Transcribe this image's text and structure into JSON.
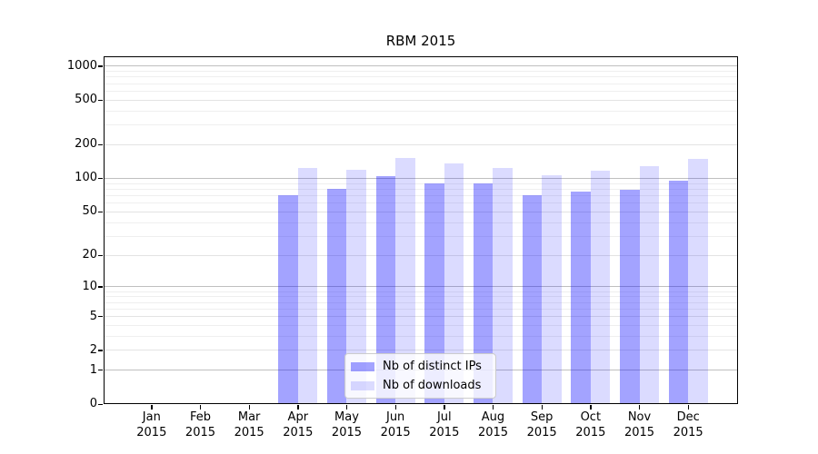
{
  "title": "RBM 2015",
  "chart_data": {
    "type": "bar",
    "title": "RBM 2015",
    "categories": [
      "Jan",
      "Feb",
      "Mar",
      "Apr",
      "May",
      "Jun",
      "Jul",
      "Aug",
      "Sep",
      "Oct",
      "Nov",
      "Dec"
    ],
    "x_year_label": "2015",
    "series": [
      {
        "name": "Nb of distinct IPs",
        "color": "rgba(0,0,255,0.36)",
        "values": [
          0,
          0,
          0,
          70,
          81,
          105,
          90,
          90,
          71,
          76,
          79,
          95
        ]
      },
      {
        "name": "Nb of downloads",
        "color": "rgba(0,0,255,0.14)",
        "values": [
          0,
          0,
          0,
          125,
          120,
          152,
          136,
          124,
          107,
          117,
          129,
          149
        ]
      }
    ],
    "xlabel": "",
    "ylabel": "",
    "y_ticks": [
      0,
      1,
      2,
      5,
      10,
      20,
      50,
      100,
      200,
      500,
      1000
    ],
    "y_scale": "log10(1+v)",
    "ylim": [
      0,
      1228
    ],
    "grid": "both",
    "legend_position": "lower-center",
    "major_grid_values": [
      1,
      10,
      100,
      1000
    ]
  }
}
